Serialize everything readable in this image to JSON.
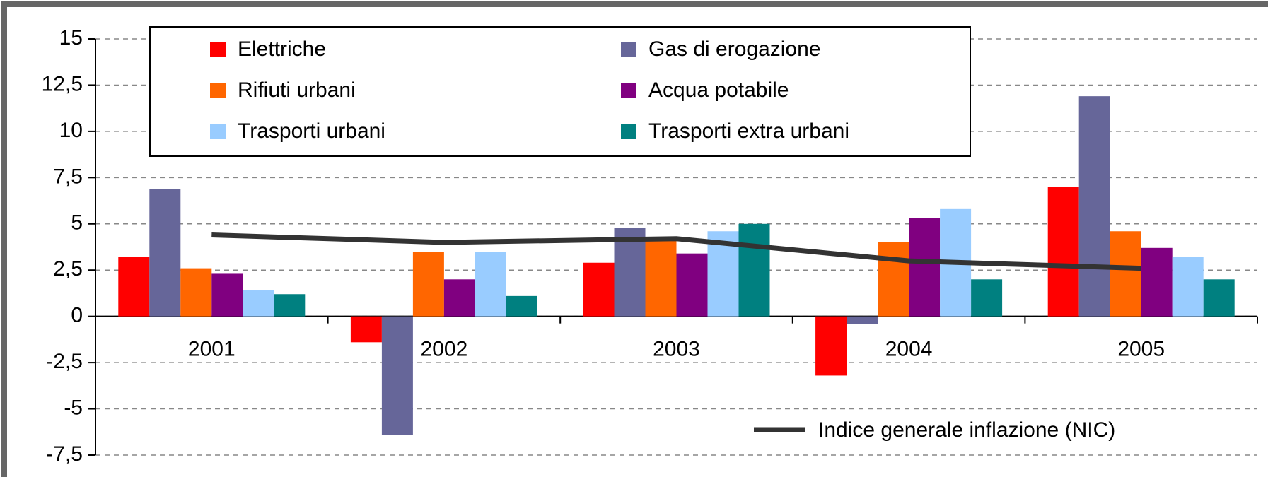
{
  "chart_data": {
    "type": "bar",
    "categories": [
      "2001",
      "2002",
      "2003",
      "2004",
      "2005"
    ],
    "series": [
      {
        "name": "Elettriche",
        "color": "#ff0000",
        "values": [
          3.2,
          -1.4,
          2.9,
          -3.2,
          7.0
        ]
      },
      {
        "name": "Gas di erogazione",
        "color": "#666699",
        "values": [
          6.9,
          -6.4,
          4.8,
          -0.4,
          11.9
        ]
      },
      {
        "name": "Rifiuti urbani",
        "color": "#ff6600",
        "values": [
          2.6,
          3.5,
          4.1,
          4.0,
          4.6
        ]
      },
      {
        "name": "Acqua potabile",
        "color": "#800080",
        "values": [
          2.3,
          2.0,
          3.4,
          5.3,
          3.7
        ]
      },
      {
        "name": "Trasporti urbani",
        "color": "#99ccff",
        "values": [
          1.4,
          3.5,
          4.6,
          5.8,
          3.2
        ]
      },
      {
        "name": "Trasporti extra urbani",
        "color": "#008080",
        "values": [
          1.2,
          1.1,
          5.0,
          2.0,
          2.0
        ]
      },
      {
        "name": "Indice generale inflazione (NIC)",
        "color": "#333333",
        "type": "line",
        "values": [
          4.4,
          4.0,
          4.2,
          3.0,
          2.6
        ]
      }
    ],
    "ylim": [
      -7.5,
      15
    ],
    "yticks": [
      {
        "value": -7.5,
        "label": "-7,5"
      },
      -5,
      {
        "value": -2.5,
        "label": "-2,5"
      },
      0,
      {
        "value": 2.5,
        "label": "2,5"
      },
      5,
      {
        "value": 7.5,
        "label": "7,5"
      },
      10,
      {
        "value": 12.5,
        "label": "12,5"
      },
      15
    ],
    "grid": true
  }
}
